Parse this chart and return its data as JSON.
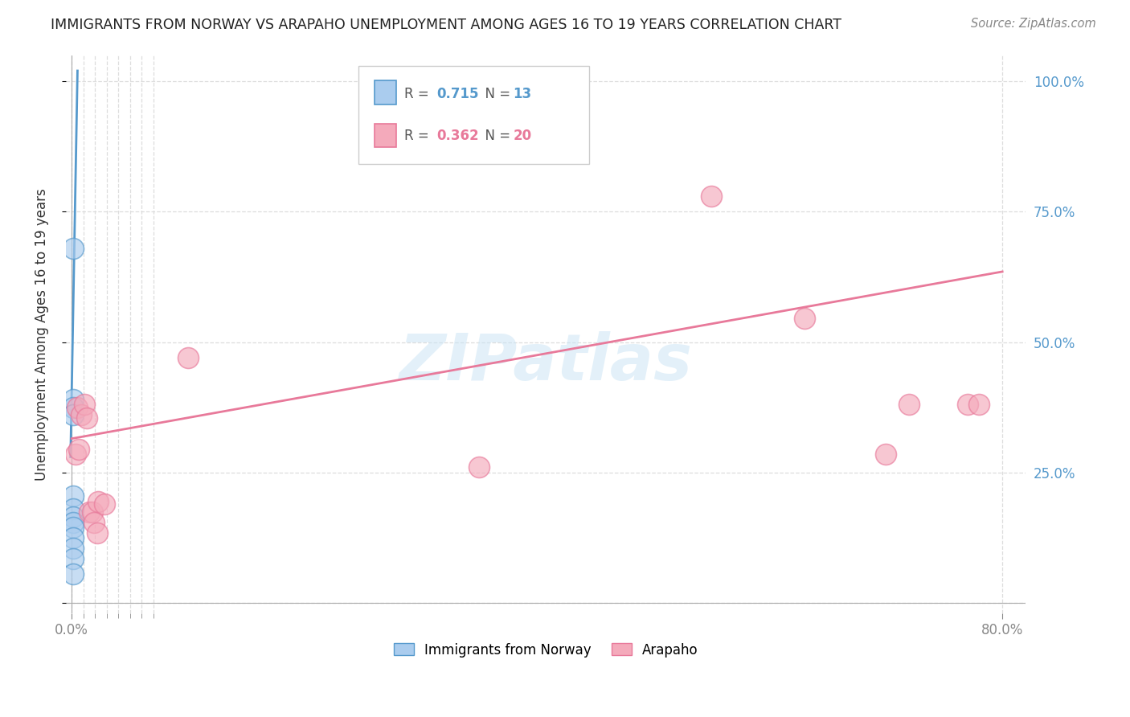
{
  "title": "IMMIGRANTS FROM NORWAY VS ARAPAHO UNEMPLOYMENT AMONG AGES 16 TO 19 YEARS CORRELATION CHART",
  "source": "Source: ZipAtlas.com",
  "ylabel": "Unemployment Among Ages 16 to 19 years",
  "watermark": "ZIPatlas",
  "blue_R": "0.715",
  "blue_N": "13",
  "pink_R": "0.362",
  "pink_N": "20",
  "blue_label": "Immigrants from Norway",
  "pink_label": "Arapaho",
  "blue_points_x": [
    0.001,
    0.001,
    0.001,
    0.001,
    0.001,
    0.001,
    0.001,
    0.001,
    0.001,
    0.001,
    0.001,
    0.001,
    0.001
  ],
  "blue_points_y": [
    0.68,
    0.39,
    0.375,
    0.36,
    0.205,
    0.18,
    0.165,
    0.155,
    0.145,
    0.125,
    0.105,
    0.085,
    0.055
  ],
  "pink_points_x": [
    0.003,
    0.005,
    0.006,
    0.008,
    0.011,
    0.013,
    0.015,
    0.018,
    0.019,
    0.022,
    0.023,
    0.028,
    0.1,
    0.35,
    0.55,
    0.63,
    0.7,
    0.72,
    0.77,
    0.78
  ],
  "pink_points_y": [
    0.285,
    0.375,
    0.295,
    0.36,
    0.38,
    0.355,
    0.175,
    0.175,
    0.155,
    0.135,
    0.195,
    0.19,
    0.47,
    0.26,
    0.78,
    0.545,
    0.285,
    0.38,
    0.38,
    0.38
  ],
  "blue_line_x": [
    -0.001,
    0.005
  ],
  "blue_line_y": [
    0.28,
    1.02
  ],
  "pink_line_x": [
    0.0,
    0.8
  ],
  "pink_line_y": [
    0.315,
    0.635
  ],
  "ytick_values": [
    0.0,
    0.25,
    0.5,
    0.75,
    1.0
  ],
  "ytick_labels_right": [
    "",
    "25.0%",
    "50.0%",
    "75.0%",
    "100.0%"
  ],
  "xtick_major": [
    0.0,
    0.8
  ],
  "xtick_major_labels": [
    "0.0%",
    "80.0%"
  ],
  "xtick_minor": [
    0.01,
    0.02,
    0.03,
    0.04,
    0.05,
    0.06,
    0.07
  ],
  "xlim": [
    -0.005,
    0.82
  ],
  "ylim": [
    -0.02,
    1.05
  ],
  "blue_color": "#5599cc",
  "pink_color": "#e8799a",
  "blue_point_color": "#aaccee",
  "pink_point_color": "#f4aabb",
  "background_color": "#ffffff",
  "grid_color": "#dddddd",
  "title_color": "#222222",
  "source_color": "#888888",
  "axis_label_color": "#333333",
  "right_tick_color": "#5599cc",
  "bottom_tick_color": "#888888"
}
